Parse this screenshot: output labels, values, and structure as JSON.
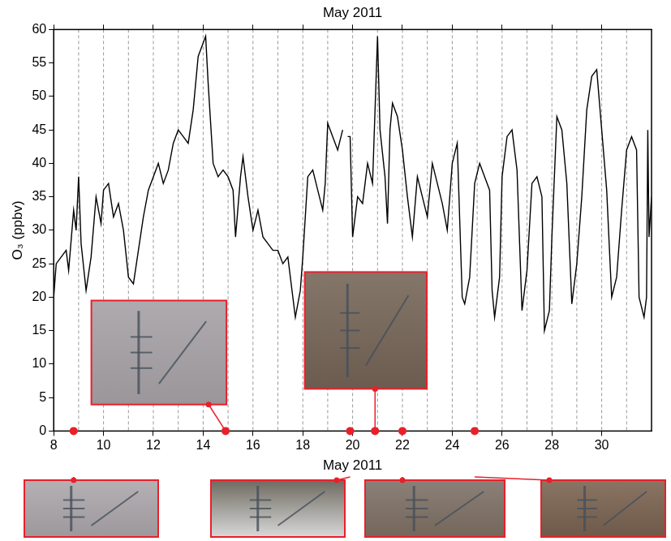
{
  "chart_data": {
    "type": "line",
    "title": "May 2011",
    "x_label": "May 2011",
    "y_label": "O₃ (ppbv)",
    "x": [
      8.0,
      8.1,
      8.3,
      8.5,
      8.6,
      8.8,
      8.9,
      9.0,
      9.1,
      9.3,
      9.5,
      9.7,
      9.9,
      10.0,
      10.2,
      10.4,
      10.6,
      10.8,
      11.0,
      11.2,
      11.4,
      11.6,
      11.8,
      12.0,
      12.2,
      12.4,
      12.6,
      12.8,
      13.0,
      13.2,
      13.4,
      13.6,
      13.8,
      14.0,
      14.1,
      14.2,
      14.4,
      14.6,
      14.8,
      15.0,
      15.2,
      15.3,
      15.5,
      15.6,
      15.8,
      16.0,
      16.2,
      16.4,
      16.6,
      16.8,
      17.0,
      17.2,
      17.4,
      17.6,
      17.7,
      17.9,
      18.0,
      18.2,
      18.4,
      18.6,
      18.8,
      18.9,
      19.0,
      19.2,
      19.4,
      19.6,
      19.7,
      19.8,
      19.9,
      20.0,
      20.2,
      20.4,
      20.6,
      20.8,
      21.0,
      21.1,
      21.3,
      21.4,
      21.5,
      21.6,
      21.8,
      22.0,
      22.2,
      22.4,
      22.6,
      22.8,
      23.0,
      23.2,
      23.4,
      23.6,
      23.8,
      24.0,
      24.2,
      24.4,
      24.5,
      24.7,
      24.9,
      25.1,
      25.3,
      25.5,
      25.6,
      25.7,
      25.9,
      26.0,
      26.2,
      26.4,
      26.6,
      26.8,
      27.0,
      27.2,
      27.4,
      27.6,
      27.7,
      27.9,
      28.0,
      28.2,
      28.4,
      28.6,
      28.8,
      29.0,
      29.2,
      29.4,
      29.6,
      29.8,
      30.0,
      30.2,
      30.4,
      30.6,
      30.8,
      31.0,
      31.2,
      31.4,
      31.5,
      31.7,
      31.8,
      31.85,
      31.9,
      32.0
    ],
    "values": [
      20,
      25,
      26,
      27,
      24,
      33,
      30,
      38,
      28,
      21,
      26,
      35,
      31,
      36,
      37,
      32,
      34,
      30,
      23,
      22,
      27,
      32,
      36,
      38,
      40,
      37,
      39,
      43,
      45,
      44,
      43,
      48,
      56,
      58,
      59,
      52,
      40,
      38,
      39,
      38,
      36,
      29,
      38,
      41,
      35,
      30,
      33,
      29,
      28,
      27,
      27,
      25,
      26,
      20,
      17,
      21,
      26,
      38,
      39,
      36,
      33,
      37,
      46,
      44,
      42,
      45,
      null,
      44,
      44,
      29,
      35,
      34,
      40,
      37,
      59,
      45,
      38,
      31,
      45,
      49,
      47,
      42,
      35,
      29,
      38,
      35,
      32,
      40,
      37,
      34,
      30,
      40,
      43,
      20,
      19,
      23,
      37,
      40,
      38,
      36,
      21,
      17,
      23,
      38,
      44,
      45,
      39,
      18,
      24,
      37,
      38,
      35,
      15,
      18,
      29,
      47,
      45,
      37,
      19,
      25,
      35,
      48,
      53,
      54,
      45,
      36,
      20,
      23,
      33,
      42,
      44,
      42,
      20,
      17,
      20,
      45,
      29,
      35
    ],
    "color": "#000000",
    "xlim": [
      8,
      32
    ],
    "xticks": [
      8,
      10,
      12,
      14,
      16,
      18,
      20,
      22,
      24,
      26,
      28,
      30
    ],
    "x_minor_ticks": [
      9,
      11,
      13,
      15,
      17,
      19,
      21,
      23,
      25,
      27,
      29,
      31
    ],
    "ylim": [
      0,
      60
    ],
    "yticks": [
      0,
      5,
      10,
      15,
      20,
      25,
      30,
      35,
      40,
      45,
      50,
      55,
      60
    ],
    "grid": true,
    "markers": {
      "x": [
        8.8,
        14.9,
        19.9,
        20.9,
        22.0,
        24.9
      ],
      "color": "#e8202a",
      "marker": "circle"
    }
  }
}
